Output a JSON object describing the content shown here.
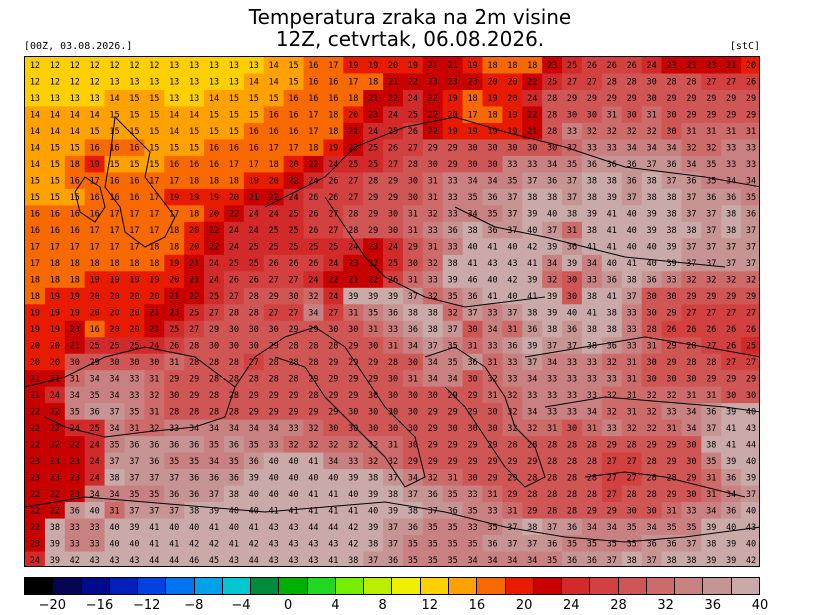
{
  "header": {
    "title_line1": "Temperatura zraka na 2m visine",
    "title_line2": "12Z, cetvrtak, 06.08.2026.",
    "init_label": "[00Z, 03.08.2026.]",
    "unit_label": "[stC]"
  },
  "map": {
    "grid_values": [
      [
        12,
        12,
        12,
        12,
        12,
        12,
        12,
        13,
        13,
        13,
        13,
        13,
        14,
        15,
        16,
        17,
        19,
        19,
        20,
        19,
        21,
        21,
        19,
        18,
        18,
        18,
        23,
        25,
        26,
        26,
        26,
        24,
        23,
        23,
        23,
        21,
        20
      ],
      [
        12,
        12,
        12,
        12,
        13,
        13,
        13,
        13,
        13,
        13,
        13,
        14,
        14,
        15,
        16,
        16,
        17,
        18,
        21,
        22,
        23,
        23,
        23,
        20,
        20,
        22,
        25,
        27,
        27,
        28,
        28,
        30,
        28,
        28,
        27,
        27,
        26
      ],
      [
        13,
        13,
        13,
        13,
        14,
        15,
        15,
        13,
        13,
        14,
        15,
        15,
        15,
        16,
        16,
        16,
        18,
        21,
        22,
        24,
        22,
        19,
        18,
        19,
        20,
        24,
        28,
        29,
        29,
        29,
        29,
        30,
        29,
        29,
        29,
        29,
        29
      ],
      [
        14,
        14,
        14,
        14,
        15,
        15,
        15,
        14,
        14,
        15,
        15,
        15,
        16,
        16,
        17,
        18,
        20,
        23,
        24,
        25,
        22,
        20,
        17,
        18,
        19,
        22,
        28,
        30,
        30,
        31,
        30,
        31,
        30,
        29,
        29,
        29,
        29
      ],
      [
        14,
        14,
        14,
        15,
        15,
        15,
        15,
        14,
        15,
        15,
        15,
        16,
        16,
        16,
        17,
        18,
        21,
        24,
        25,
        26,
        22,
        19,
        19,
        19,
        19,
        21,
        28,
        33,
        32,
        32,
        32,
        32,
        30,
        31,
        31,
        31,
        31
      ],
      [
        14,
        15,
        15,
        16,
        16,
        16,
        15,
        15,
        15,
        16,
        16,
        16,
        17,
        17,
        18,
        19,
        22,
        25,
        26,
        27,
        29,
        29,
        30,
        30,
        30,
        30,
        30,
        32,
        33,
        33,
        34,
        34,
        34,
        32,
        32,
        33,
        33
      ],
      [
        14,
        15,
        18,
        19,
        15,
        15,
        15,
        16,
        16,
        16,
        17,
        17,
        18,
        20,
        22,
        24,
        25,
        25,
        27,
        28,
        30,
        29,
        30,
        30,
        33,
        33,
        34,
        35,
        36,
        36,
        36,
        37,
        36,
        34,
        35,
        33,
        33
      ],
      [
        15,
        15,
        16,
        17,
        16,
        16,
        17,
        17,
        18,
        18,
        18,
        19,
        20,
        22,
        24,
        26,
        27,
        28,
        29,
        30,
        31,
        33,
        34,
        34,
        35,
        37,
        36,
        37,
        38,
        38,
        36,
        38,
        37,
        36,
        35,
        34,
        34
      ],
      [
        15,
        15,
        15,
        16,
        16,
        16,
        17,
        19,
        19,
        19,
        20,
        21,
        22,
        24,
        26,
        26,
        27,
        29,
        29,
        30,
        31,
        33,
        35,
        36,
        37,
        38,
        38,
        37,
        38,
        39,
        37,
        38,
        38,
        37,
        36,
        36,
        35
      ],
      [
        16,
        16,
        16,
        16,
        17,
        17,
        17,
        17,
        18,
        20,
        22,
        24,
        24,
        25,
        26,
        27,
        28,
        29,
        30,
        31,
        32,
        33,
        34,
        35,
        37,
        39,
        40,
        38,
        39,
        41,
        40,
        39,
        38,
        37,
        37,
        38,
        36
      ],
      [
        16,
        16,
        16,
        17,
        17,
        17,
        17,
        18,
        20,
        22,
        24,
        24,
        25,
        25,
        26,
        27,
        28,
        29,
        30,
        31,
        33,
        36,
        38,
        36,
        37,
        40,
        37,
        31,
        38,
        41,
        40,
        39,
        38,
        38,
        37,
        38,
        37
      ],
      [
        17,
        17,
        17,
        17,
        17,
        17,
        18,
        18,
        20,
        22,
        24,
        25,
        25,
        25,
        25,
        25,
        24,
        23,
        24,
        29,
        31,
        33,
        40,
        41,
        40,
        42,
        39,
        36,
        41,
        41,
        40,
        40,
        39,
        37,
        37,
        37,
        37
      ],
      [
        17,
        18,
        18,
        18,
        18,
        18,
        18,
        19,
        21,
        24,
        25,
        25,
        26,
        26,
        26,
        24,
        23,
        22,
        25,
        30,
        32,
        38,
        41,
        43,
        43,
        41,
        34,
        39,
        34,
        40,
        41,
        40,
        39,
        37,
        37,
        37,
        37
      ],
      [
        18,
        18,
        18,
        19,
        19,
        19,
        19,
        20,
        21,
        24,
        26,
        26,
        27,
        27,
        24,
        22,
        21,
        22,
        26,
        31,
        33,
        39,
        46,
        40,
        42,
        39,
        32,
        30,
        33,
        36,
        38,
        36,
        33,
        32,
        32,
        32,
        32
      ],
      [
        18,
        19,
        19,
        20,
        20,
        20,
        20,
        21,
        22,
        25,
        27,
        28,
        29,
        30,
        32,
        24,
        39,
        39,
        39,
        37,
        32,
        35,
        36,
        41,
        40,
        41,
        39,
        30,
        38,
        41,
        37,
        30,
        30,
        29,
        29,
        29,
        29
      ],
      [
        19,
        19,
        19,
        20,
        20,
        20,
        21,
        23,
        25,
        27,
        28,
        28,
        27,
        27,
        34,
        27,
        31,
        35,
        36,
        38,
        38,
        32,
        37,
        33,
        37,
        38,
        39,
        40,
        41,
        38,
        33,
        30,
        29,
        27,
        27,
        27,
        27
      ],
      [
        19,
        19,
        23,
        16,
        20,
        20,
        21,
        25,
        27,
        29,
        30,
        30,
        30,
        29,
        29,
        30,
        30,
        31,
        33,
        36,
        38,
        37,
        30,
        34,
        31,
        36,
        38,
        36,
        38,
        38,
        33,
        28,
        26,
        26,
        26,
        26,
        26
      ],
      [
        20,
        20,
        21,
        25,
        25,
        25,
        24,
        26,
        28,
        30,
        30,
        30,
        29,
        28,
        28,
        28,
        29,
        30,
        31,
        34,
        37,
        35,
        31,
        33,
        36,
        39,
        37,
        37,
        38,
        36,
        33,
        31,
        29,
        28,
        27,
        26,
        25
      ],
      [
        20,
        20,
        30,
        29,
        30,
        30,
        30,
        31,
        28,
        28,
        28,
        27,
        28,
        28,
        28,
        29,
        29,
        29,
        28,
        30,
        34,
        35,
        36,
        31,
        33,
        37,
        34,
        33,
        33,
        32,
        31,
        30,
        29,
        28,
        28,
        27,
        27
      ],
      [
        21,
        21,
        31,
        34,
        34,
        33,
        31,
        29,
        29,
        28,
        28,
        28,
        28,
        28,
        29,
        29,
        29,
        29,
        30,
        31,
        34,
        34,
        30,
        32,
        33,
        34,
        33,
        33,
        33,
        33,
        31,
        30,
        30,
        30,
        29,
        29,
        29
      ],
      [
        21,
        24,
        34,
        35,
        34,
        33,
        32,
        30,
        29,
        28,
        28,
        29,
        29,
        29,
        28,
        29,
        29,
        30,
        30,
        30,
        30,
        29,
        29,
        31,
        32,
        33,
        33,
        33,
        33,
        32,
        31,
        32,
        32,
        31,
        31,
        30,
        30
      ],
      [
        22,
        22,
        35,
        36,
        37,
        35,
        31,
        28,
        28,
        28,
        28,
        29,
        29,
        29,
        29,
        29,
        30,
        30,
        30,
        30,
        29,
        29,
        29,
        30,
        32,
        34,
        33,
        33,
        34,
        32,
        31,
        32,
        33,
        34,
        36,
        39,
        40
      ],
      [
        22,
        22,
        24,
        25,
        34,
        31,
        32,
        33,
        34,
        34,
        34,
        34,
        34,
        33,
        32,
        30,
        30,
        30,
        30,
        30,
        29,
        30,
        30,
        30,
        32,
        32,
        31,
        30,
        31,
        33,
        32,
        32,
        31,
        34,
        37,
        41,
        43
      ],
      [
        22,
        22,
        22,
        24,
        35,
        36,
        36,
        36,
        36,
        35,
        36,
        35,
        33,
        32,
        32,
        32,
        32,
        32,
        31,
        30,
        29,
        29,
        29,
        29,
        28,
        28,
        28,
        28,
        28,
        29,
        28,
        29,
        29,
        30,
        38,
        41,
        44
      ],
      [
        23,
        23,
        23,
        24,
        37,
        37,
        36,
        35,
        35,
        34,
        35,
        36,
        40,
        40,
        41,
        34,
        33,
        32,
        32,
        29,
        29,
        29,
        29,
        29,
        29,
        29,
        28,
        28,
        28,
        27,
        27,
        28,
        29,
        30,
        35,
        39,
        40
      ],
      [
        23,
        23,
        23,
        24,
        38,
        37,
        37,
        37,
        36,
        36,
        36,
        39,
        40,
        40,
        40,
        40,
        39,
        38,
        37,
        34,
        32,
        31,
        30,
        29,
        29,
        28,
        28,
        28,
        28,
        27,
        27,
        28,
        28,
        29,
        31,
        36,
        39
      ],
      [
        22,
        22,
        23,
        34,
        34,
        35,
        35,
        36,
        36,
        37,
        38,
        40,
        40,
        40,
        41,
        41,
        40,
        39,
        38,
        37,
        36,
        35,
        33,
        31,
        29,
        28,
        28,
        28,
        28,
        27,
        28,
        28,
        29,
        30,
        31,
        34,
        37
      ],
      [
        22,
        22,
        36,
        40,
        31,
        37,
        37,
        37,
        38,
        39,
        40,
        40,
        41,
        41,
        41,
        41,
        41,
        40,
        39,
        38,
        37,
        36,
        35,
        33,
        31,
        29,
        28,
        28,
        29,
        29,
        30,
        30,
        31,
        33,
        34,
        36,
        40
      ],
      [
        22,
        38,
        33,
        33,
        40,
        39,
        41,
        40,
        40,
        41,
        40,
        41,
        43,
        43,
        44,
        44,
        42,
        39,
        37,
        36,
        35,
        35,
        33,
        35,
        37,
        38,
        37,
        36,
        34,
        34,
        35,
        34,
        35,
        35,
        39,
        40,
        43
      ],
      [
        23,
        39,
        33,
        33,
        40,
        40,
        41,
        41,
        42,
        42,
        41,
        42,
        43,
        43,
        43,
        43,
        42,
        38,
        37,
        35,
        35,
        35,
        35,
        36,
        37,
        37,
        36,
        35,
        35,
        35,
        35,
        36,
        36,
        37,
        38,
        39,
        40
      ],
      [
        24,
        39,
        42,
        43,
        43,
        43,
        44,
        44,
        46,
        45,
        43,
        44,
        43,
        43,
        43,
        41,
        38,
        37,
        36,
        35,
        35,
        35,
        34,
        34,
        34,
        34,
        35,
        36,
        36,
        37,
        38,
        37,
        38,
        38,
        39,
        39,
        42
      ]
    ]
  },
  "legend": {
    "colors": [
      "#000000",
      "#050554",
      "#000b8c",
      "#0020b8",
      "#0042e0",
      "#0073ee",
      "#00a1ea",
      "#00c7d2",
      "#008a3c",
      "#00b000",
      "#1fd81f",
      "#76ee00",
      "#b9f000",
      "#eef000",
      "#ffd000",
      "#ffa200",
      "#f86a00",
      "#e81b00",
      "#c80000",
      "#d22a2a",
      "#d34040",
      "#d05656",
      "#cd6a6a",
      "#c98080",
      "#c79494",
      "#caa9a9"
    ],
    "tick_labels": [
      "−20",
      "−16",
      "−12",
      "−8",
      "−4",
      "0",
      "4",
      "8",
      "12",
      "16",
      "20",
      "24",
      "28",
      "32",
      "36",
      "40"
    ]
  }
}
